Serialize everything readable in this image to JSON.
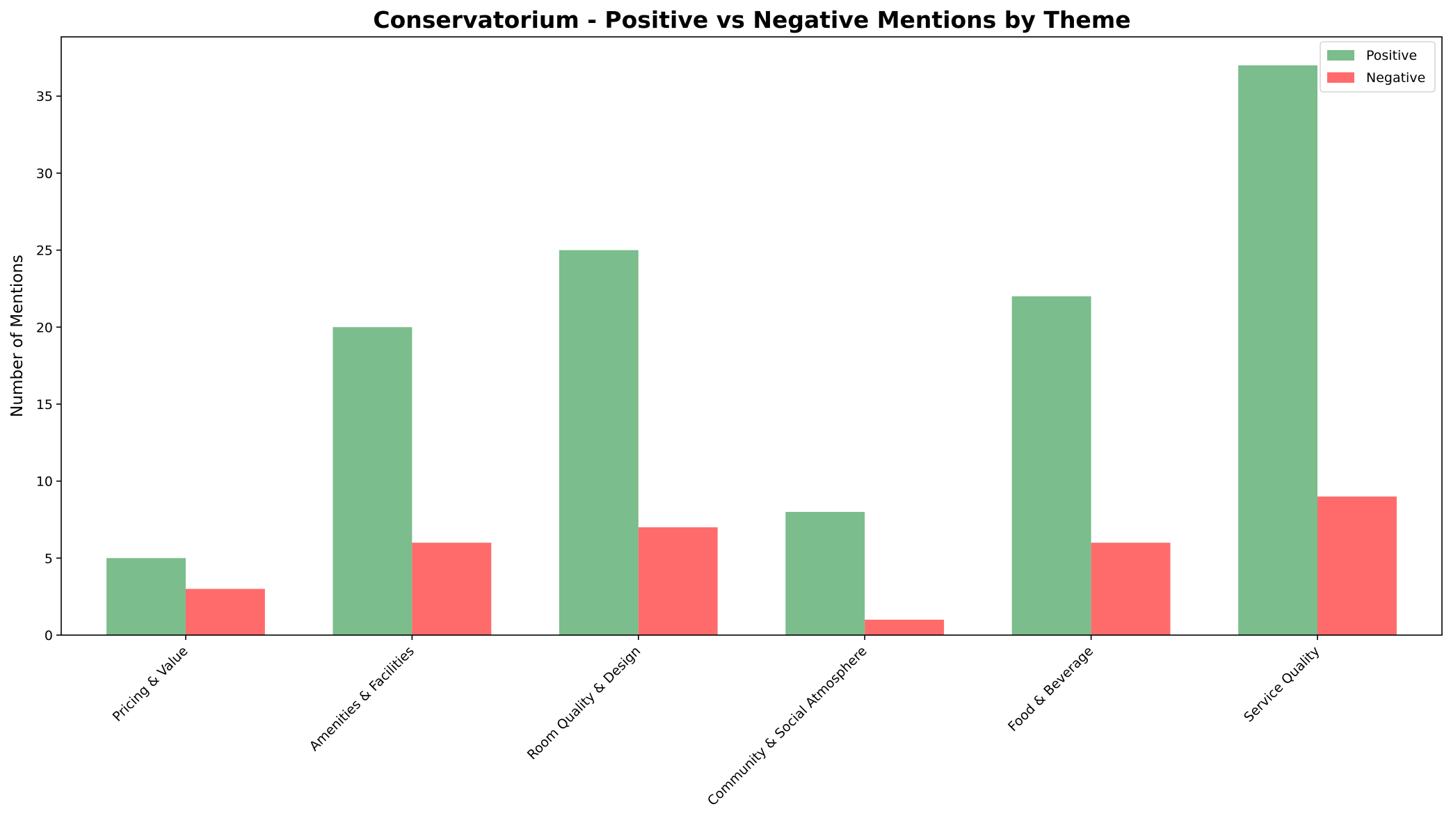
{
  "chart_data": {
    "type": "bar",
    "title": "Conservatorium - Positive vs Negative Mentions by Theme",
    "xlabel": "",
    "ylabel": "Number of Mentions",
    "categories": [
      "Pricing & Value",
      "Amenities & Facilities",
      "Room Quality & Design",
      "Community & Social Atmosphere",
      "Food & Beverage",
      "Service Quality"
    ],
    "series": [
      {
        "name": "Positive",
        "color": "#7bbd8c",
        "values": [
          5,
          20,
          25,
          8,
          22,
          37
        ]
      },
      {
        "name": "Negative",
        "color": "#ff6b6b",
        "values": [
          3,
          6,
          7,
          1,
          6,
          9
        ]
      }
    ],
    "ylim": [
      0,
      38.85
    ],
    "yticks": [
      0,
      5,
      10,
      15,
      20,
      25,
      30,
      35
    ],
    "grid": false,
    "legend": "top-right"
  }
}
